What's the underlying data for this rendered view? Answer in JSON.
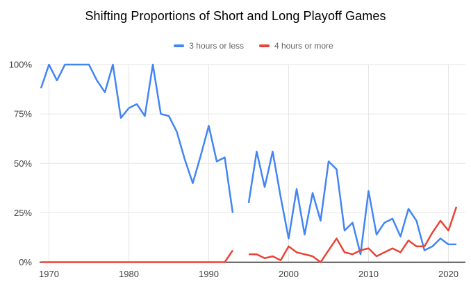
{
  "chart_data": {
    "type": "line",
    "title": "Shifting Proportions of Short and Long Playoff Games",
    "x": [
      1969,
      1970,
      1971,
      1972,
      1973,
      1974,
      1975,
      1976,
      1977,
      1978,
      1979,
      1980,
      1981,
      1982,
      1983,
      1984,
      1985,
      1986,
      1987,
      1988,
      1989,
      1990,
      1991,
      1992,
      1993,
      1994,
      1995,
      1996,
      1997,
      1998,
      1999,
      2000,
      2001,
      2002,
      2003,
      2004,
      2005,
      2006,
      2007,
      2008,
      2009,
      2010,
      2011,
      2012,
      2013,
      2014,
      2015,
      2016,
      2017,
      2018,
      2019,
      2020,
      2021
    ],
    "series": [
      {
        "name": "3 hours or less",
        "color": "#4285f4",
        "values": [
          88,
          100,
          92,
          100,
          100,
          100,
          100,
          92,
          86,
          100,
          73,
          78,
          80,
          74,
          100,
          75,
          74,
          66,
          52,
          40,
          54,
          69,
          51,
          53,
          25,
          null,
          30,
          56,
          38,
          56,
          33,
          12,
          37,
          14,
          35,
          21,
          51,
          47,
          16,
          20,
          4,
          36,
          14,
          20,
          22,
          13,
          27,
          21,
          6,
          8,
          12,
          9,
          9
        ]
      },
      {
        "name": "4 hours or more",
        "color": "#ea4335",
        "values": [
          0,
          0,
          0,
          0,
          0,
          0,
          0,
          0,
          0,
          0,
          0,
          0,
          0,
          0,
          0,
          0,
          0,
          0,
          0,
          0,
          0,
          0,
          0,
          0,
          6,
          null,
          4,
          4,
          2,
          3,
          1,
          8,
          5,
          4,
          3,
          0,
          6,
          12,
          5,
          4,
          6,
          7,
          3,
          5,
          7,
          5,
          11,
          8,
          8,
          15,
          21,
          16,
          28
        ]
      }
    ],
    "ylim": [
      0,
      100
    ],
    "y_tick_labels": [
      "0%",
      "25%",
      "50%",
      "75%",
      "100%"
    ],
    "x_tick_labels": [
      "1970",
      "1980",
      "1990",
      "2000",
      "2010",
      "2020"
    ],
    "grid": true,
    "legend_position": "top",
    "colors": {
      "axis_baseline": "#212121",
      "gridline": "#e6e6e6",
      "tick_label": "#424242",
      "legend_text": "#5f6368",
      "title_text": "#000000"
    }
  }
}
